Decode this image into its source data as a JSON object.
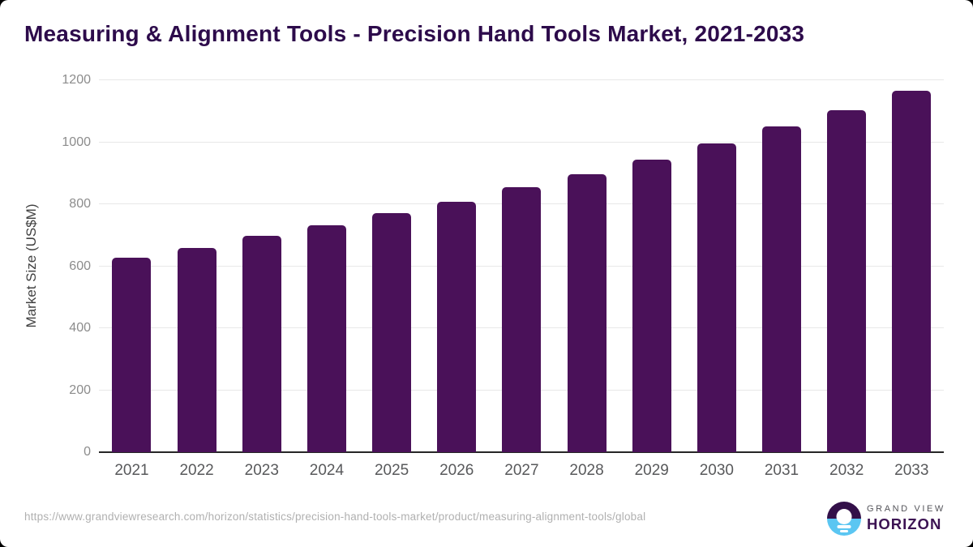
{
  "header": {
    "title": "Measuring & Alignment Tools - Precision Hand Tools Market, 2021-2033"
  },
  "chart_data": {
    "type": "bar",
    "title": "Measuring & Alignment Tools - Precision Hand Tools Market, 2021-2033",
    "categories": [
      "2021",
      "2022",
      "2023",
      "2024",
      "2025",
      "2026",
      "2027",
      "2028",
      "2029",
      "2030",
      "2031",
      "2032",
      "2033"
    ],
    "values": [
      628,
      660,
      697,
      733,
      770,
      809,
      854,
      898,
      945,
      997,
      1050,
      1104,
      1165
    ],
    "xlabel": "",
    "ylabel": "Market Size (US$M)",
    "ylim": [
      0,
      1200
    ],
    "yticks": [
      0,
      200,
      400,
      600,
      800,
      1000,
      1200
    ],
    "grid": "horizontal",
    "legend": "none",
    "bar_color": "#4a1159"
  },
  "colors": {
    "title_text": "#2d0b4b",
    "bar": "#4a1159",
    "gridline": "#e8e8e8",
    "axis_line": "#262626",
    "y_tick_text": "#8c8c8c",
    "x_tick_text": "#58595b",
    "source_text": "#b0b0b0",
    "logo_purple": "#331049",
    "logo_blue": "#5bc6f2",
    "brand_text": "#3c1353"
  },
  "footer": {
    "source_url": "https://www.grandviewresearch.com/horizon/statistics/precision-hand-tools-market/product/measuring-alignment-tools/global",
    "logo": {
      "icon": "horizon-sun-icon",
      "brand_top": "GRAND VIEW",
      "brand_bottom": "HORIZON"
    }
  }
}
